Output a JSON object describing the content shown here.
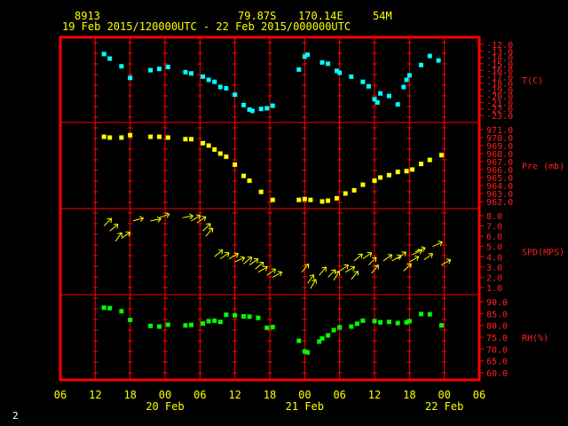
{
  "header": {
    "station_id": "8913",
    "lat": "79.87S",
    "lon": "170.14E",
    "elev": "54M",
    "time_range": "19 Feb 2015/120000UTC - 22 Feb 2015/000000UTC"
  },
  "page_number": "2",
  "colors": {
    "frame": "#ff0000",
    "tick": "#ff0000",
    "temp": "#00ffff",
    "pressure": "#ffff00",
    "wind": "#ffff00",
    "rh": "#00ff00",
    "axis_text": "#ffff00",
    "label_text": "#ff2020",
    "background": "#000000"
  },
  "chart_data": {
    "type": "scatter",
    "x_unit": "hours since 19 Feb 2015 06:00 UTC",
    "xlim": [
      0,
      72
    ],
    "x_ticks": [
      {
        "x": 0,
        "label": "06"
      },
      {
        "x": 6,
        "label": "12"
      },
      {
        "x": 12,
        "label": "18"
      },
      {
        "x": 18,
        "label": "00"
      },
      {
        "x": 24,
        "label": "06"
      },
      {
        "x": 30,
        "label": "12"
      },
      {
        "x": 36,
        "label": "18"
      },
      {
        "x": 42,
        "label": "00"
      },
      {
        "x": 48,
        "label": "06"
      },
      {
        "x": 54,
        "label": "12"
      },
      {
        "x": 60,
        "label": "18"
      },
      {
        "x": 66,
        "label": "00"
      },
      {
        "x": 72,
        "label": "06"
      }
    ],
    "date_labels": [
      {
        "x": 18,
        "label": "20 Feb"
      },
      {
        "x": 42,
        "label": "21 Feb"
      },
      {
        "x": 66,
        "label": "22 Feb"
      }
    ],
    "panels": [
      {
        "key": "temp",
        "label": "T(C)",
        "color": "#00ffff",
        "range": [
          -23,
          -12
        ],
        "ticks": [
          -12,
          -13,
          -14,
          -15,
          -16,
          -17,
          -18,
          -19,
          -20,
          -21,
          -22,
          -23
        ],
        "tick_labels": [
          "-12.0",
          "-13.0",
          "-14.0",
          "-15.0",
          "-16.0",
          "-17.0",
          "-18.0",
          "-19.0",
          "-20.0",
          "-21.0",
          "-22.0",
          "-23.0"
        ],
        "points": [
          [
            7.5,
            -13.5
          ],
          [
            8.5,
            -14.2
          ],
          [
            10.5,
            -15.4
          ],
          [
            12,
            -17.2
          ],
          [
            15.5,
            -16.0
          ],
          [
            17,
            -15.8
          ],
          [
            18.5,
            -15.5
          ],
          [
            21.5,
            -16.3
          ],
          [
            22.5,
            -16.5
          ],
          [
            24.5,
            -17.0
          ],
          [
            25.5,
            -17.5
          ],
          [
            26.5,
            -17.8
          ],
          [
            27.5,
            -18.6
          ],
          [
            28.5,
            -18.8
          ],
          [
            30,
            -19.8
          ],
          [
            31.5,
            -21.4
          ],
          [
            32.5,
            -22.1
          ],
          [
            33,
            -22.3
          ],
          [
            34.5,
            -22.0
          ],
          [
            35.5,
            -21.9
          ],
          [
            36.5,
            -21.5
          ],
          [
            41,
            -15.9
          ],
          [
            42,
            -13.9
          ],
          [
            42.5,
            -13.6
          ],
          [
            45,
            -14.8
          ],
          [
            46,
            -15.0
          ],
          [
            47.5,
            -16.1
          ],
          [
            48,
            -16.4
          ],
          [
            50,
            -17.0
          ],
          [
            52,
            -17.8
          ],
          [
            53,
            -18.5
          ],
          [
            54,
            -20.5
          ],
          [
            54.5,
            -21.0
          ],
          [
            55,
            -19.6
          ],
          [
            56.5,
            -20.0
          ],
          [
            58,
            -21.3
          ],
          [
            59,
            -18.6
          ],
          [
            59.5,
            -17.5
          ],
          [
            60,
            -16.8
          ],
          [
            62,
            -15.2
          ],
          [
            63.5,
            -13.8
          ],
          [
            65,
            -14.5
          ]
        ]
      },
      {
        "key": "pressure",
        "label": "Pre (mb)",
        "color": "#ffff00",
        "range": [
          962,
          971
        ],
        "ticks": [
          971,
          970,
          969,
          968,
          967,
          966,
          965,
          964,
          963,
          962
        ],
        "tick_labels": [
          "971.0",
          "970.0",
          "969.0",
          "968.0",
          "967.0",
          "966.0",
          "965.0",
          "964.0",
          "963.0",
          "962.0"
        ],
        "points": [
          [
            7.5,
            970.1
          ],
          [
            8.5,
            970.0
          ],
          [
            10.5,
            970.0
          ],
          [
            12,
            970.3
          ],
          [
            15.5,
            970.1
          ],
          [
            17,
            970.1
          ],
          [
            18.5,
            970.0
          ],
          [
            21.5,
            969.8
          ],
          [
            22.5,
            969.8
          ],
          [
            24.5,
            969.3
          ],
          [
            25.5,
            969.0
          ],
          [
            26.5,
            968.5
          ],
          [
            27.5,
            968.0
          ],
          [
            28.5,
            967.6
          ],
          [
            30,
            966.6
          ],
          [
            31.5,
            965.2
          ],
          [
            32.5,
            964.6
          ],
          [
            34.5,
            963.2
          ],
          [
            36.5,
            962.2
          ],
          [
            41,
            962.2
          ],
          [
            42,
            962.3
          ],
          [
            43,
            962.2
          ],
          [
            45,
            962.0
          ],
          [
            46,
            962.1
          ],
          [
            47.5,
            962.4
          ],
          [
            49,
            963.0
          ],
          [
            50.5,
            963.4
          ],
          [
            52,
            964.1
          ],
          [
            54,
            964.6
          ],
          [
            55,
            965.0
          ],
          [
            56.5,
            965.3
          ],
          [
            58,
            965.7
          ],
          [
            59.5,
            965.8
          ],
          [
            60.5,
            966.0
          ],
          [
            62,
            966.7
          ],
          [
            63.5,
            967.2
          ],
          [
            65.5,
            967.8
          ]
        ]
      },
      {
        "key": "wind",
        "label": "SPD(MPS)",
        "color": "#ffff00",
        "range": [
          1,
          8
        ],
        "ticks": [
          8,
          7,
          6,
          5,
          4,
          3,
          2,
          1
        ],
        "tick_labels": [
          "8.0",
          "7.0",
          "6.0",
          "5.0",
          "4.0",
          "3.0",
          "2.0",
          "1.0"
        ],
        "points": [
          [
            7.5,
            7.0
          ],
          [
            8.5,
            6.5
          ],
          [
            9.5,
            5.5
          ],
          [
            10.5,
            5.8
          ],
          [
            12.5,
            7.5
          ],
          [
            15.5,
            7.5
          ],
          [
            17,
            7.8
          ],
          [
            21,
            7.8
          ],
          [
            22.5,
            7.5
          ],
          [
            23.5,
            7.3
          ],
          [
            24.5,
            6.5
          ],
          [
            25,
            6.0
          ],
          [
            26.5,
            4.0
          ],
          [
            27.5,
            3.8
          ],
          [
            29,
            3.8
          ],
          [
            30,
            3.5
          ],
          [
            31.5,
            3.3
          ],
          [
            32.5,
            3.2
          ],
          [
            33.5,
            2.8
          ],
          [
            34,
            2.5
          ],
          [
            35.5,
            2.2
          ],
          [
            36.5,
            2.0
          ],
          [
            41.5,
            2.5
          ],
          [
            42.5,
            1.4
          ],
          [
            43,
            0.9
          ],
          [
            44.5,
            2.2
          ],
          [
            46,
            2.0
          ],
          [
            47,
            1.7
          ],
          [
            48,
            2.6
          ],
          [
            49,
            2.5
          ],
          [
            50,
            1.8
          ],
          [
            50.5,
            3.6
          ],
          [
            52,
            3.8
          ],
          [
            53,
            3.2
          ],
          [
            53.5,
            2.4
          ],
          [
            55.5,
            3.6
          ],
          [
            57,
            3.6
          ],
          [
            58,
            3.8
          ],
          [
            59,
            2.6
          ],
          [
            60,
            3.5
          ],
          [
            60.5,
            4.2
          ],
          [
            61,
            4.5
          ],
          [
            62.5,
            3.7
          ],
          [
            64,
            5.0
          ],
          [
            65.5,
            3.2
          ]
        ],
        "dirs_deg": [
          -45,
          -40,
          -55,
          -35,
          -15,
          -10,
          -20,
          -10,
          -30,
          -35,
          -45,
          -50,
          -40,
          -35,
          -30,
          -25,
          -40,
          -35,
          -40,
          -30,
          -35,
          -30,
          -50,
          -55,
          -60,
          -50,
          -45,
          -60,
          -35,
          -30,
          -50,
          -40,
          -35,
          -45,
          -50,
          -35,
          -30,
          -40,
          -45,
          -30,
          -25,
          -20,
          -35,
          -25,
          -30
        ]
      },
      {
        "key": "rh",
        "label": "RH(%)",
        "color": "#00ff00",
        "range": [
          60,
          90
        ],
        "ticks": [
          90,
          85,
          80,
          75,
          70,
          65,
          60
        ],
        "tick_labels": [
          "90.0",
          "85.0",
          "80.0",
          "75.0",
          "70.0",
          "65.0",
          "60.0"
        ],
        "points": [
          [
            7.5,
            87.5
          ],
          [
            8.5,
            87.3
          ],
          [
            10.5,
            86.0
          ],
          [
            12,
            82.3
          ],
          [
            15.5,
            79.8
          ],
          [
            17,
            79.5
          ],
          [
            18.5,
            80.3
          ],
          [
            21.5,
            80.0
          ],
          [
            22.5,
            80.2
          ],
          [
            24.5,
            80.8
          ],
          [
            25.5,
            81.8
          ],
          [
            26.5,
            82.0
          ],
          [
            27.5,
            81.5
          ],
          [
            28.5,
            84.5
          ],
          [
            30,
            84.3
          ],
          [
            31.5,
            83.8
          ],
          [
            32.5,
            83.7
          ],
          [
            34,
            83.2
          ],
          [
            35.5,
            79.0
          ],
          [
            36.5,
            79.3
          ],
          [
            41,
            73.5
          ],
          [
            42,
            69.0
          ],
          [
            42.5,
            68.6
          ],
          [
            44.5,
            73.2
          ],
          [
            45,
            74.5
          ],
          [
            46,
            75.8
          ],
          [
            47,
            78.0
          ],
          [
            48,
            79.2
          ],
          [
            50,
            79.5
          ],
          [
            51,
            80.7
          ],
          [
            52,
            82.0
          ],
          [
            54,
            81.8
          ],
          [
            55,
            81.3
          ],
          [
            56.5,
            81.5
          ],
          [
            58,
            81.0
          ],
          [
            59.5,
            81.3
          ],
          [
            60,
            81.8
          ],
          [
            62,
            84.8
          ],
          [
            63.5,
            84.7
          ],
          [
            65.5,
            80.0
          ]
        ]
      }
    ]
  }
}
